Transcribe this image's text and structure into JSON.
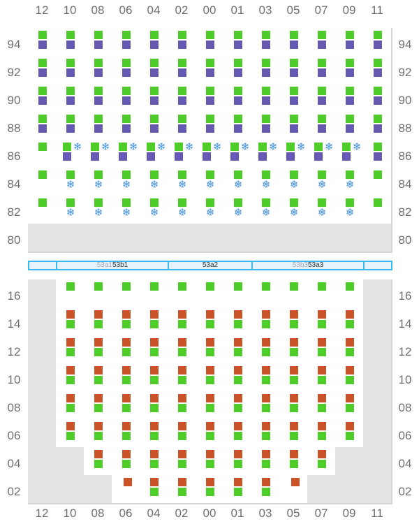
{
  "columns": [
    "12",
    "10",
    "08",
    "06",
    "04",
    "02",
    "00",
    "01",
    "03",
    "05",
    "07",
    "09",
    "11"
  ],
  "colors": {
    "green": "#4ecd2a",
    "purple": "#6359b0",
    "orange": "#cc522a",
    "disabled": "#e3e3e6",
    "aisle": "#3bb8f0"
  },
  "icons": {
    "snow": "snowflake-icon"
  },
  "top_section": {
    "rows": [
      {
        "label": "94",
        "cells": [
          "gp",
          "gp",
          "gp",
          "gp",
          "gp",
          "gp",
          "gp",
          "gp",
          "gp",
          "gp",
          "gp",
          "gp",
          "gp"
        ]
      },
      {
        "label": "92",
        "cells": [
          "gp",
          "gp",
          "gp",
          "gp",
          "gp",
          "gp",
          "gp",
          "gp",
          "gp",
          "gp",
          "gp",
          "gp",
          "gp"
        ]
      },
      {
        "label": "90",
        "cells": [
          "gp",
          "gp",
          "gp",
          "gp",
          "gp",
          "gp",
          "gp",
          "gp",
          "gp",
          "gp",
          "gp",
          "gp",
          "gp"
        ]
      },
      {
        "label": "88",
        "cells": [
          "gp",
          "gp",
          "gp",
          "gp",
          "gp",
          "gp",
          "gp",
          "gp",
          "gp",
          "gp",
          "gp",
          "gp",
          "gp"
        ]
      },
      {
        "label": "86",
        "cells": [
          "g",
          "gsp",
          "gsp",
          "gsp",
          "gsp",
          "gsp",
          "gsp",
          "gsp",
          "gsp",
          "gsp",
          "gsp",
          "gsp",
          "gp"
        ]
      },
      {
        "label": "84",
        "cells": [
          "g",
          "gs",
          "gs",
          "gs",
          "gs",
          "gs",
          "gs",
          "gs",
          "gs",
          "gs",
          "gs",
          "gs",
          "g"
        ]
      },
      {
        "label": "82",
        "cells": [
          "g",
          "gs",
          "gs",
          "gs",
          "gs",
          "gs",
          "gs",
          "gs",
          "gs",
          "gs",
          "gs",
          "gs",
          "g"
        ]
      },
      {
        "label": "80",
        "cells": [
          "x",
          "x",
          "x",
          "x",
          "x",
          "x",
          "x",
          "x",
          "x",
          "x",
          "x",
          "x",
          "x"
        ]
      }
    ]
  },
  "aisle": {
    "segments": [
      {
        "faint": "",
        "label": ""
      },
      {
        "faint": "53a1",
        "label": "53b1"
      },
      {
        "faint": "",
        "label": "53a2"
      },
      {
        "faint": "53b3",
        "label": "53a3"
      },
      {
        "faint": "",
        "label": ""
      }
    ]
  },
  "bottom_section": {
    "rows": [
      {
        "label": "16",
        "cells": [
          "x",
          "g",
          "g",
          "g",
          "g",
          "g",
          "g",
          "g",
          "g",
          "g",
          "g",
          "g",
          "x"
        ]
      },
      {
        "label": "14",
        "cells": [
          "x",
          "og",
          "og",
          "og",
          "og",
          "og",
          "og",
          "og",
          "og",
          "og",
          "og",
          "og",
          "x"
        ]
      },
      {
        "label": "12",
        "cells": [
          "x",
          "og",
          "og",
          "og",
          "og",
          "og",
          "og",
          "og",
          "og",
          "og",
          "og",
          "og",
          "x"
        ]
      },
      {
        "label": "10",
        "cells": [
          "x",
          "og",
          "og",
          "og",
          "og",
          "og",
          "og",
          "og",
          "og",
          "og",
          "og",
          "og",
          "x"
        ]
      },
      {
        "label": "08",
        "cells": [
          "x",
          "og",
          "og",
          "og",
          "og",
          "og",
          "og",
          "og",
          "og",
          "og",
          "og",
          "og",
          "x"
        ]
      },
      {
        "label": "06",
        "cells": [
          "x",
          "og",
          "og",
          "og",
          "og",
          "og",
          "og",
          "og",
          "og",
          "og",
          "og",
          "og",
          "x"
        ]
      },
      {
        "label": "04",
        "cells": [
          "x",
          "x",
          "og",
          "og",
          "og",
          "og",
          "og",
          "og",
          "og",
          "og",
          "og",
          "x",
          "x"
        ]
      },
      {
        "label": "02",
        "cells": [
          "x",
          "x",
          "x",
          "o",
          "og",
          "og",
          "og",
          "og",
          "og",
          "o",
          "x",
          "x",
          "x"
        ]
      }
    ]
  }
}
